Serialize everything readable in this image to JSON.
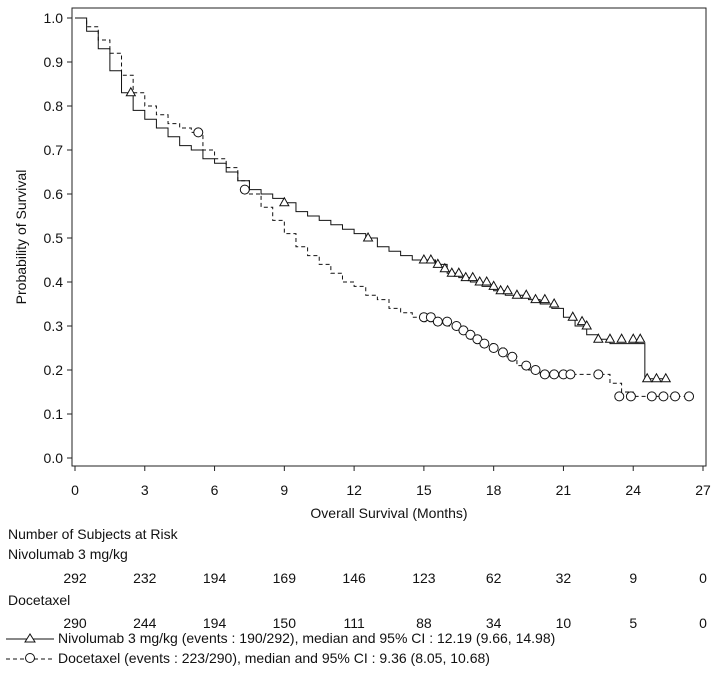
{
  "chart_data": {
    "type": "line",
    "subtype": "kaplan-meier",
    "xlabel": "Overall Survival (Months)",
    "ylabel": "Probability of Survival",
    "xlim": [
      0,
      27
    ],
    "ylim": [
      0,
      1
    ],
    "x_ticks": [
      "0",
      "3",
      "6",
      "9",
      "12",
      "15",
      "18",
      "21",
      "24",
      "27"
    ],
    "y_ticks": [
      "0.0",
      "0.1",
      "0.2",
      "0.3",
      "0.4",
      "0.5",
      "0.6",
      "0.7",
      "0.8",
      "0.9",
      "1.0"
    ],
    "grid": false,
    "series": [
      {
        "name": "Nivolumab 3 mg/kg",
        "line_style": "solid",
        "marker": "triangle",
        "color": "#111111",
        "x": [
          0,
          0.5,
          1,
          1.5,
          2,
          2.5,
          3,
          3.5,
          4,
          4.5,
          5,
          5.5,
          6,
          6.5,
          7,
          7.5,
          8,
          8.5,
          9,
          9.5,
          10,
          10.5,
          11,
          11.5,
          12,
          12.5,
          13,
          13.5,
          14,
          14.5,
          15,
          15.5,
          16,
          16.5,
          17,
          17.5,
          18,
          18.5,
          19,
          19.5,
          20,
          20.5,
          21,
          21.5,
          22,
          22.5,
          23,
          23.5,
          24,
          24.5,
          25.5
        ],
        "y": [
          1.0,
          0.97,
          0.93,
          0.88,
          0.83,
          0.79,
          0.77,
          0.75,
          0.73,
          0.71,
          0.7,
          0.68,
          0.67,
          0.65,
          0.63,
          0.61,
          0.6,
          0.59,
          0.58,
          0.56,
          0.55,
          0.54,
          0.53,
          0.52,
          0.51,
          0.5,
          0.48,
          0.47,
          0.46,
          0.45,
          0.45,
          0.44,
          0.42,
          0.41,
          0.4,
          0.39,
          0.38,
          0.37,
          0.37,
          0.36,
          0.35,
          0.34,
          0.32,
          0.3,
          0.28,
          0.27,
          0.26,
          0.26,
          0.26,
          0.18,
          0.18
        ],
        "censor_x": [
          2.4,
          9.0,
          12.6,
          15.0,
          15.3,
          15.6,
          15.9,
          16.2,
          16.5,
          16.8,
          17.1,
          17.4,
          17.7,
          18.0,
          18.3,
          18.6,
          19.0,
          19.4,
          19.8,
          20.2,
          20.6,
          21.4,
          21.8,
          22.0,
          22.5,
          23.0,
          23.5,
          24.0,
          24.3,
          24.6,
          25.0,
          25.4
        ],
        "censor_y": [
          0.83,
          0.58,
          0.5,
          0.45,
          0.45,
          0.44,
          0.43,
          0.42,
          0.42,
          0.41,
          0.41,
          0.4,
          0.4,
          0.39,
          0.38,
          0.38,
          0.37,
          0.37,
          0.36,
          0.36,
          0.35,
          0.32,
          0.31,
          0.3,
          0.27,
          0.27,
          0.27,
          0.27,
          0.27,
          0.18,
          0.18,
          0.18
        ]
      },
      {
        "name": "Docetaxel",
        "line_style": "dashed",
        "marker": "circle",
        "color": "#111111",
        "x": [
          0,
          0.5,
          1,
          1.5,
          2,
          2.5,
          3,
          3.5,
          4,
          4.5,
          5,
          5.5,
          6,
          6.5,
          7,
          7.5,
          8,
          8.5,
          9,
          9.5,
          10,
          10.5,
          11,
          11.5,
          12,
          12.5,
          13,
          13.5,
          14,
          14.5,
          15,
          15.5,
          16,
          16.5,
          17,
          17.5,
          18,
          18.5,
          19,
          19.5,
          20,
          20.5,
          21,
          21.5,
          22,
          22.5,
          23,
          23.5,
          24,
          24.5,
          25,
          25.5,
          26.5
        ],
        "y": [
          1.0,
          0.98,
          0.95,
          0.92,
          0.87,
          0.83,
          0.8,
          0.78,
          0.76,
          0.75,
          0.74,
          0.7,
          0.68,
          0.66,
          0.63,
          0.6,
          0.57,
          0.54,
          0.51,
          0.48,
          0.46,
          0.44,
          0.42,
          0.4,
          0.39,
          0.37,
          0.36,
          0.34,
          0.33,
          0.32,
          0.31,
          0.31,
          0.3,
          0.29,
          0.27,
          0.26,
          0.25,
          0.23,
          0.21,
          0.2,
          0.19,
          0.19,
          0.19,
          0.19,
          0.19,
          0.19,
          0.17,
          0.15,
          0.14,
          0.14,
          0.14,
          0.14,
          0.14
        ],
        "censor_x": [
          5.3,
          7.3,
          15.0,
          15.3,
          15.6,
          16.0,
          16.4,
          16.7,
          17.0,
          17.3,
          17.6,
          18.0,
          18.4,
          18.8,
          19.4,
          19.8,
          20.2,
          20.6,
          21.0,
          21.3,
          22.5,
          23.4,
          23.9,
          24.8,
          25.3,
          25.8,
          26.4
        ],
        "censor_y": [
          0.74,
          0.61,
          0.32,
          0.32,
          0.31,
          0.31,
          0.3,
          0.29,
          0.28,
          0.27,
          0.26,
          0.25,
          0.24,
          0.23,
          0.21,
          0.2,
          0.19,
          0.19,
          0.19,
          0.19,
          0.19,
          0.14,
          0.14,
          0.14,
          0.14,
          0.14,
          0.14
        ]
      }
    ]
  },
  "risk_table": {
    "title": "Number of Subjects at Risk",
    "groups": [
      {
        "label": "Nivolumab 3 mg/kg",
        "values": [
          "292",
          "232",
          "194",
          "169",
          "146",
          "123",
          "62",
          "32",
          "9",
          "0"
        ]
      },
      {
        "label": "Docetaxel",
        "values": [
          "290",
          "244",
          "194",
          "150",
          "111",
          "88",
          "34",
          "10",
          "5",
          "0"
        ]
      }
    ]
  },
  "legend": [
    {
      "text": "Nivolumab 3 mg/kg (events : 190/292), median and 95% CI : 12.19 (9.66, 14.98)",
      "line_style": "solid",
      "marker": "triangle"
    },
    {
      "text": "Docetaxel (events : 223/290), median and 95% CI : 9.36 (8.05, 10.68)",
      "line_style": "dashed",
      "marker": "circle"
    }
  ]
}
